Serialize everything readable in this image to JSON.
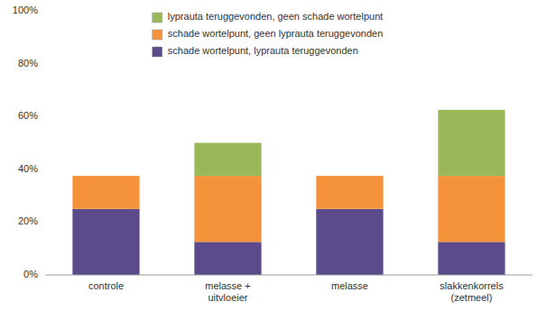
{
  "chart_data": {
    "type": "bar",
    "stacked": true,
    "categories": [
      "controle",
      "melasse +\nuitvloeier",
      "melasse",
      "slakkenkorrels\n(zetmeel)"
    ],
    "series": [
      {
        "name": "schade wortelpunt, lyprauta teruggevonden",
        "color": "#5b4b8a",
        "values": [
          25,
          12.5,
          25,
          12.5
        ]
      },
      {
        "name": "schade wortelpunt, geen lyprauta teruggevonden",
        "color": "#f4923a",
        "values": [
          12.5,
          25,
          12.5,
          25
        ]
      },
      {
        "name": "lyprauta teruggevonden, geen schade wortelpunt",
        "color": "#9ab857",
        "values": [
          0,
          12.5,
          0,
          25
        ]
      }
    ],
    "ylim": [
      0,
      100
    ],
    "yticks": [
      {
        "value": 0,
        "label": "0%"
      },
      {
        "value": 20,
        "label": "20%"
      },
      {
        "value": 40,
        "label": "40%"
      },
      {
        "value": 60,
        "label": "60%"
      },
      {
        "value": 80,
        "label": "80%"
      },
      {
        "value": 100,
        "label": "100%"
      }
    ],
    "grid": false,
    "legend": "top-left"
  }
}
